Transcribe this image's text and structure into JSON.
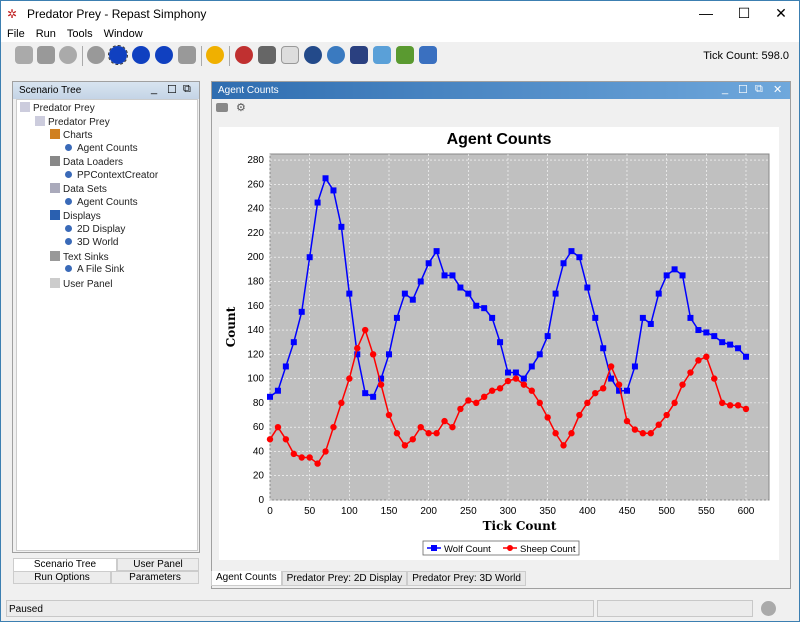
{
  "window": {
    "title": "Predator Prey - Repast Simphony"
  },
  "menu": [
    "File",
    "Run",
    "Tools",
    "Window"
  ],
  "toolbar": {
    "tick_count": "Tick Count: 598.0"
  },
  "scenario_tree": {
    "title": "Scenario Tree",
    "items": [
      {
        "label": "Predator Prey",
        "level": 0,
        "icon": "model-icon"
      },
      {
        "label": "Predator Prey",
        "level": 1,
        "icon": "model-icon"
      },
      {
        "label": "Charts",
        "level": 2,
        "icon": "charts-icon"
      },
      {
        "label": "Agent Counts",
        "level": 3,
        "icon": "node-icon"
      },
      {
        "label": "Data Loaders",
        "level": 2,
        "icon": "data-loader-icon"
      },
      {
        "label": "PPContextCreator",
        "level": 3,
        "icon": "node-icon"
      },
      {
        "label": "Data Sets",
        "level": 2,
        "icon": "data-sets-icon"
      },
      {
        "label": "Agent Counts",
        "level": 3,
        "icon": "node-icon"
      },
      {
        "label": "Displays",
        "level": 2,
        "icon": "monitor-icon"
      },
      {
        "label": "2D Display",
        "level": 3,
        "icon": "node-icon"
      },
      {
        "label": "3D World",
        "level": 3,
        "icon": "node-icon"
      },
      {
        "label": "Text Sinks",
        "level": 2,
        "icon": "text-sink-icon"
      },
      {
        "label": "A File Sink",
        "level": 3,
        "icon": "node-icon"
      },
      {
        "label": "User Panel",
        "level": 2,
        "icon": "user-panel-icon"
      }
    ],
    "tabs": [
      "Scenario Tree",
      "User Panel",
      "Run Options",
      "Parameters"
    ]
  },
  "chart_window": {
    "title": "Agent Counts",
    "tabs": [
      "Agent Counts",
      "Predator Prey: 2D Display",
      "Predator Prey: 3D World"
    ]
  },
  "status": {
    "text": "Paused"
  },
  "chart_data": {
    "type": "line",
    "title": "Agent Counts",
    "xlabel": "Tick Count",
    "ylabel": "Count",
    "xlim": [
      0,
      629
    ],
    "ylim": [
      0,
      285
    ],
    "xticks": [
      0,
      50,
      100,
      150,
      200,
      250,
      300,
      350,
      400,
      450,
      500,
      550,
      600
    ],
    "yticks": [
      0,
      20,
      40,
      60,
      80,
      100,
      120,
      140,
      160,
      180,
      200,
      220,
      240,
      260,
      280
    ],
    "grid": true,
    "legend": "bottom-center",
    "x": [
      0,
      10,
      20,
      30,
      40,
      50,
      60,
      70,
      80,
      90,
      100,
      110,
      120,
      130,
      140,
      150,
      160,
      170,
      180,
      190,
      200,
      210,
      220,
      230,
      240,
      250,
      260,
      270,
      280,
      290,
      300,
      310,
      320,
      330,
      340,
      350,
      360,
      370,
      380,
      390,
      400,
      410,
      420,
      430,
      440,
      450,
      460,
      470,
      480,
      490,
      500,
      510,
      520,
      530,
      540,
      550,
      560,
      570,
      580,
      590,
      600
    ],
    "series": [
      {
        "name": "Wolf Count",
        "color": "#0000ff",
        "marker": "square",
        "values": [
          85,
          90,
          110,
          130,
          155,
          200,
          245,
          265,
          255,
          225,
          170,
          120,
          88,
          85,
          100,
          120,
          150,
          170,
          165,
          180,
          195,
          205,
          185,
          185,
          175,
          170,
          160,
          158,
          150,
          130,
          105,
          105,
          100,
          110,
          120,
          135,
          170,
          195,
          205,
          200,
          175,
          150,
          125,
          100,
          90,
          90,
          110,
          150,
          145,
          170,
          185,
          190,
          185,
          150,
          140,
          138,
          135,
          130,
          128,
          125,
          118
        ]
      },
      {
        "name": "Sheep Count",
        "color": "#ff0000",
        "marker": "circle",
        "values": [
          50,
          60,
          50,
          38,
          35,
          35,
          30,
          40,
          60,
          80,
          100,
          125,
          140,
          120,
          95,
          70,
          55,
          45,
          50,
          60,
          55,
          55,
          65,
          60,
          75,
          82,
          80,
          85,
          90,
          92,
          98,
          100,
          95,
          90,
          80,
          68,
          55,
          45,
          55,
          70,
          80,
          88,
          92,
          110,
          95,
          65,
          58,
          55,
          55,
          62,
          70,
          80,
          95,
          105,
          115,
          118,
          100,
          80,
          78,
          78,
          75
        ]
      }
    ]
  }
}
